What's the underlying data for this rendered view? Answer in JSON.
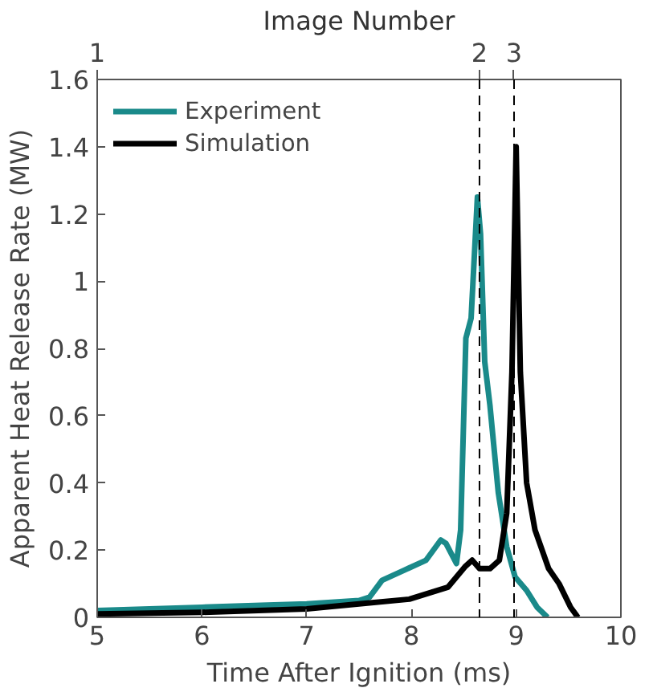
{
  "chart_data": {
    "type": "line",
    "xlabel": "Time After Ignition (ms)",
    "ylabel": "Apparent Heat Release Rate (MW)",
    "annotations": [
      "Image Number",
      "1",
      {
        "text": "2",
        "x": 8.65
      },
      {
        "text": "3",
        "x": 8.98
      }
    ],
    "xlim": [
      5,
      10
    ],
    "xticks": [
      5,
      6,
      7,
      8,
      9,
      10
    ],
    "ylim": [
      0,
      1.6
    ],
    "yticks": [
      0,
      0.2,
      0.4,
      0.6,
      0.8,
      1,
      1.2,
      1.4,
      1.6
    ],
    "ref_lines": [
      {
        "axis": "x",
        "value": 8.65,
        "label": null,
        "color": "#000000",
        "line_style": "dashed"
      },
      {
        "axis": "x",
        "value": 8.98,
        "label": null,
        "color": "#000000",
        "line_style": "dashed"
      }
    ],
    "series": [
      {
        "name": "Experiment",
        "color": "#1a8a8a",
        "x": [
          5,
          5.5,
          6,
          6.5,
          7,
          7.5,
          7.6,
          7.72,
          7.93,
          8.14,
          8.28,
          8.33,
          8.43,
          8.47,
          8.52,
          8.57,
          8.63,
          8.66,
          8.7,
          8.75,
          8.83,
          8.91,
          8.99,
          9.1,
          9.2,
          9.3
        ],
        "values": [
          0.02,
          0.025,
          0.03,
          0.035,
          0.04,
          0.05,
          0.06,
          0.11,
          0.14,
          0.17,
          0.23,
          0.22,
          0.16,
          0.26,
          0.83,
          0.89,
          1.25,
          1.14,
          0.76,
          0.63,
          0.37,
          0.21,
          0.12,
          0.08,
          0.03,
          0
        ]
      },
      {
        "name": "Simulation",
        "color": "#000000",
        "x": [
          5,
          6,
          7,
          7.5,
          7.98,
          8.35,
          8.51,
          8.58,
          8.65,
          8.75,
          8.84,
          8.91,
          8.96,
          9.0,
          9.04,
          9.1,
          9.18,
          9.31,
          9.41,
          9.52,
          9.59
        ],
        "values": [
          0.01,
          0.015,
          0.025,
          0.04,
          0.054,
          0.09,
          0.15,
          0.17,
          0.145,
          0.145,
          0.17,
          0.31,
          0.73,
          1.4,
          0.73,
          0.4,
          0.26,
          0.145,
          0.1,
          0.03,
          0
        ]
      }
    ],
    "legend": "top left",
    "grid": false,
    "marker": "none",
    "line_style": "solid"
  }
}
